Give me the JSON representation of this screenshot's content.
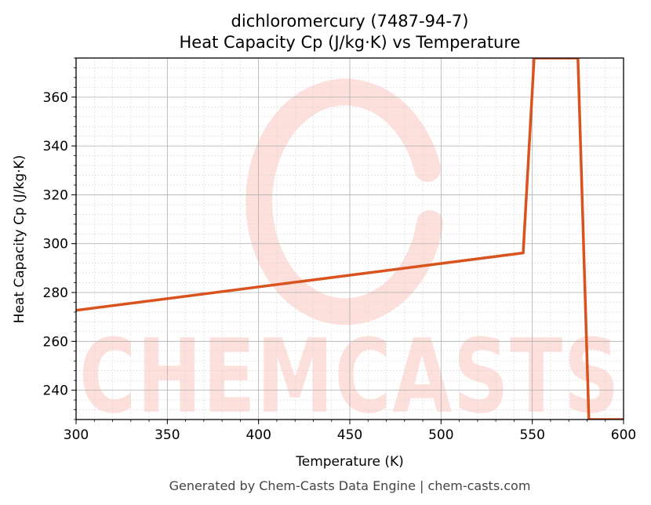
{
  "chart_data": {
    "type": "line",
    "title_lines": [
      "dichloromercury (7487-94-7)",
      "Heat Capacity Cp (J/kg·K) vs Temperature"
    ],
    "xlabel": "Temperature (K)",
    "ylabel": "Heat Capacity Cp (J/kg·K)",
    "xlim": [
      300,
      600
    ],
    "ylim": [
      228,
      376
    ],
    "x_ticks": [
      300,
      350,
      400,
      450,
      500,
      550,
      600
    ],
    "y_ticks": [
      240,
      260,
      280,
      300,
      320,
      340,
      360
    ],
    "grid": true,
    "legend": "none",
    "series": [
      {
        "color": "#d9531e",
        "x": [
          300,
          545,
          551,
          575,
          581,
          600
        ],
        "y": [
          272.7,
          296.2,
          376,
          376,
          228,
          228
        ]
      }
    ],
    "watermark": "CHEMCASTS",
    "footer": "Generated by Chem-Casts Data Engine | chem-casts.com"
  }
}
